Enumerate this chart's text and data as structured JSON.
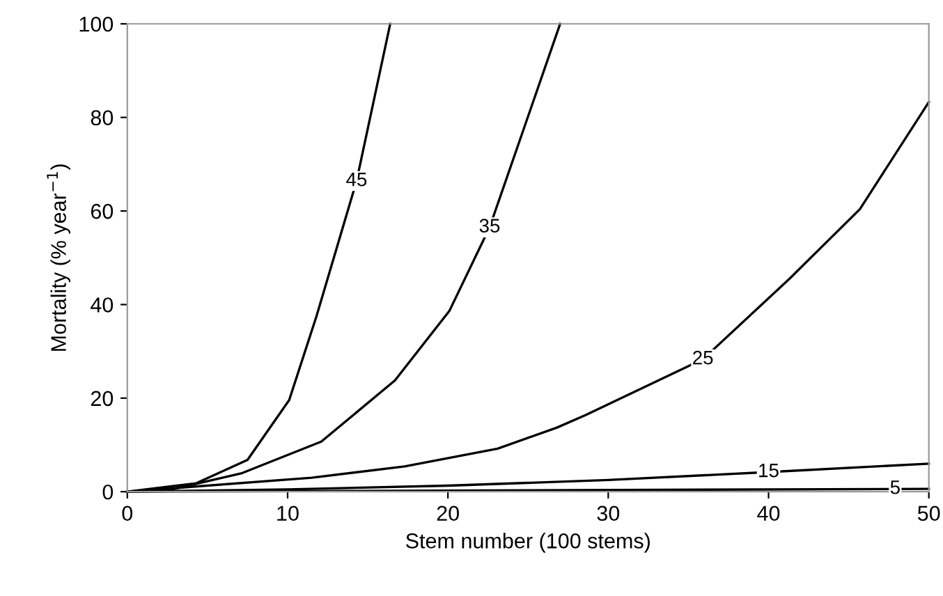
{
  "chart_data": {
    "type": "line",
    "xlabel": "Stem number (100 stems)",
    "ylabel": "Mortality (% year$^{−1}$)",
    "xlim": [
      0,
      50
    ],
    "ylim": [
      0,
      100
    ],
    "xticks": [
      0,
      10,
      20,
      30,
      40,
      50
    ],
    "yticks": [
      0,
      20,
      40,
      60,
      80,
      100
    ],
    "grid": false,
    "marker": "none",
    "line_style": "solid",
    "series": [
      {
        "color": "#000000",
        "x": [
          0,
          4.3,
          7.5,
          10.1,
          11.8,
          14.3,
          16.4
        ],
        "values": [
          0,
          1.8,
          6.8,
          19.6,
          37.5,
          66.4,
          100
        ]
      },
      {
        "color": "#000000",
        "x": [
          0,
          2.8,
          7.1,
          12.1,
          16.7,
          20.1,
          22.6,
          27.0
        ],
        "values": [
          0,
          0.5,
          3.9,
          10.7,
          23.8,
          38.7,
          56.5,
          100
        ]
      },
      {
        "color": "#000000",
        "x": [
          0,
          11.5,
          17.3,
          23.1,
          26.8,
          28.6,
          35.9,
          41.3,
          45.7,
          50
        ],
        "values": [
          0,
          3.0,
          5.4,
          9.2,
          13.7,
          16.4,
          28.3,
          45.5,
          60.4,
          83.3
        ]
      },
      {
        "color": "#000000",
        "x": [
          0,
          10,
          20,
          30,
          40,
          50
        ],
        "values": [
          0,
          0.5,
          1.3,
          2.5,
          4.2,
          6.0
        ]
      },
      {
        "color": "#000000",
        "x": [
          0,
          25,
          50
        ],
        "values": [
          0,
          0.3,
          0.6
        ]
      }
    ],
    "annotations": [
      {
        "text": "45",
        "x": 14.3,
        "y": 66.4
      },
      {
        "text": "35",
        "x": 22.6,
        "y": 56.5
      },
      {
        "text": "25",
        "x": 35.9,
        "y": 28.3
      },
      {
        "text": "15",
        "x": 40,
        "y": 4.2
      },
      {
        "text": "5",
        "x": 47.9,
        "y": 0.6
      }
    ]
  }
}
